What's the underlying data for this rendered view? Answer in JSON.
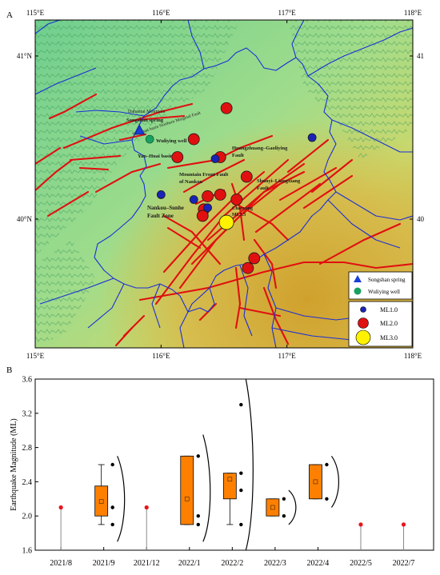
{
  "panel_a": {
    "label": "A",
    "lon_ticks": [
      "115°E",
      "116°E",
      "117°E",
      "118°E"
    ],
    "lat_ticks_left": [
      "41°N",
      "40°N"
    ],
    "lat_ticks_right": [
      "41",
      "40"
    ],
    "map_labels": {
      "dahanta": "Dahantai Mountain",
      "songshan_spring": "Songshan spring",
      "yanhuai_north": "Yan-Huai basin Northern Marginal Fault",
      "wuliying_well": "Wuliying well",
      "yanhuai_basin": "Yan–Huai basin",
      "huangzhuang_1": "Huangzhuang–Gaoliying",
      "huangzhuang_2": "Fault",
      "mountain_front_1": "Mountain Front Fault",
      "mountain_front_2": "of Nankou",
      "shunyi_1": "Shunyi–Liangxiang",
      "shunyi_2": "Fault",
      "nankou_1": "Nankou–Sunhe",
      "nankou_2": "Fault Zone",
      "chaoyang_1": "Chaoyang",
      "chaoyang_2": "ML3.3"
    },
    "legend": {
      "songshan": "Songshan spring",
      "wuliying": "Wuliying well",
      "ml1": "ML1.0",
      "ml2": "ML2.0",
      "ml3": "ML3.0"
    },
    "colors": {
      "fault": "#e01010",
      "boundary": "#1a2fd6",
      "ml1": "#1a23b8",
      "ml2": "#e01010",
      "ml3": "#fff200",
      "well": "#1aa060",
      "spring": "#1a3fd6"
    },
    "events": [
      {
        "lon": 116.52,
        "lat": 40.68,
        "mag": 2.0
      },
      {
        "lon": 116.26,
        "lat": 40.49,
        "mag": 2.0
      },
      {
        "lon": 116.13,
        "lat": 40.38,
        "mag": 2.0
      },
      {
        "lon": 116.47,
        "lat": 40.38,
        "mag": 2.0
      },
      {
        "lon": 116.43,
        "lat": 40.37,
        "mag": 1.0
      },
      {
        "lon": 116.68,
        "lat": 40.26,
        "mag": 2.0
      },
      {
        "lon": 116.0,
        "lat": 40.15,
        "mag": 1.0
      },
      {
        "lon": 116.26,
        "lat": 40.12,
        "mag": 1.0
      },
      {
        "lon": 116.37,
        "lat": 40.14,
        "mag": 2.0
      },
      {
        "lon": 116.47,
        "lat": 40.15,
        "mag": 2.0
      },
      {
        "lon": 116.6,
        "lat": 40.12,
        "mag": 2.0
      },
      {
        "lon": 116.34,
        "lat": 40.06,
        "mag": 2.0
      },
      {
        "lon": 116.37,
        "lat": 40.07,
        "mag": 1.0
      },
      {
        "lon": 116.33,
        "lat": 40.02,
        "mag": 2.0
      },
      {
        "lon": 116.52,
        "lat": 39.98,
        "mag": 3.0
      },
      {
        "lon": 116.74,
        "lat": 39.76,
        "mag": 2.0
      },
      {
        "lon": 116.69,
        "lat": 39.7,
        "mag": 2.0
      },
      {
        "lon": 117.2,
        "lat": 40.5,
        "mag": 1.0
      }
    ],
    "songshan": {
      "lon": 115.83,
      "lat": 40.54
    },
    "wuliying": {
      "lon": 115.91,
      "lat": 40.49
    }
  },
  "chart_data": {
    "type": "box",
    "panel_label": "B",
    "ylabel": "Earthquake Magnitude (ML)",
    "ylim": [
      1.6,
      3.6
    ],
    "yticks": [
      "1.6",
      "2.0",
      "2.4",
      "2.8",
      "3.2",
      "3.6"
    ],
    "categories": [
      "2021/8",
      "2021/9",
      "2021/12",
      "2022/1",
      "2022/2",
      "2022/3",
      "2022/4",
      "2022/5",
      "2022/7"
    ],
    "single_events": [
      {
        "category": "2021/8",
        "value": 2.1
      },
      {
        "category": "2021/12",
        "value": 2.1
      },
      {
        "category": "2022/5",
        "value": 1.9
      },
      {
        "category": "2022/7",
        "value": 1.9
      }
    ],
    "boxes": [
      {
        "category": "2021/9",
        "q1": 2.0,
        "q3": 2.35,
        "median": 2.1,
        "mean": 2.17,
        "whisker_low": 1.9,
        "whisker_high": 2.6,
        "points": [
          2.6,
          2.1,
          2.1,
          1.9
        ],
        "curve_range": [
          1.7,
          2.7
        ]
      },
      {
        "category": "2022/1",
        "q1": 1.9,
        "q3": 2.7,
        "median": 2.3,
        "mean": 2.2,
        "whisker_low": 1.9,
        "whisker_high": 2.7,
        "points": [
          2.7,
          2.0,
          1.9
        ],
        "curve_range": [
          1.7,
          2.95
        ]
      },
      {
        "category": "2022/2",
        "q1": 2.2,
        "q3": 2.5,
        "median": 2.45,
        "mean": 2.43,
        "whisker_low": 1.9,
        "whisker_high": 2.5,
        "points": [
          3.3,
          2.5,
          2.3,
          1.9
        ],
        "curve_range": [
          1.6,
          3.6
        ]
      },
      {
        "category": "2022/3",
        "q1": 2.0,
        "q3": 2.2,
        "median": 2.1,
        "mean": 2.1,
        "whisker_low": 2.0,
        "whisker_high": 2.2,
        "points": [
          2.2,
          2.0
        ],
        "curve_range": [
          1.9,
          2.3
        ]
      },
      {
        "category": "2022/4",
        "q1": 2.2,
        "q3": 2.6,
        "median": 2.4,
        "mean": 2.4,
        "whisker_low": 2.2,
        "whisker_high": 2.6,
        "points": [
          2.6,
          2.2
        ],
        "curve_range": [
          2.1,
          2.7
        ]
      }
    ],
    "colors": {
      "box": "#ff8000",
      "single_point": "#e8141e",
      "curve": "#000000"
    }
  }
}
